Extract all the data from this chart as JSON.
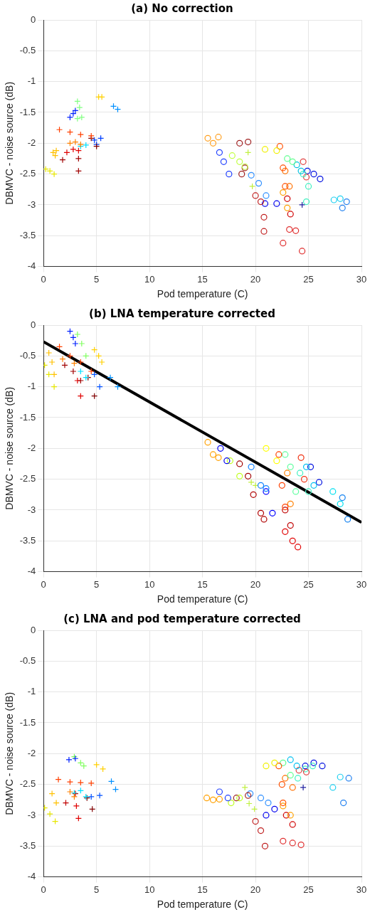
{
  "chart_data": [
    {
      "type": "scatter",
      "title": "(a) No correction",
      "xlabel": "Pod temperature (C)",
      "ylabel": "DBMVC - noise source (dB)",
      "xlim": [
        0,
        30
      ],
      "xticks": [
        0,
        5,
        10,
        15,
        20,
        25,
        30
      ],
      "ylim": [
        -4,
        0
      ],
      "yticks": [
        -4,
        -3.5,
        -3,
        -2.5,
        -2,
        -1.5,
        -1,
        -0.5,
        0
      ],
      "grid": true,
      "legend": false,
      "series": [
        {
          "color": "#e6e600",
          "marker": "cross",
          "x": [
            0.2,
            0.6,
            1.0
          ],
          "values": [
            -2.42,
            -2.45,
            -2.5
          ]
        },
        {
          "color": "#ffc000",
          "marker": "cross",
          "x": [
            0.9,
            1.1,
            1.2
          ],
          "values": [
            -2.15,
            -2.2,
            -2.12
          ]
        },
        {
          "color": "#ff4000",
          "marker": "cross",
          "x": [
            1.5,
            2.5,
            3.5,
            4.5
          ],
          "values": [
            -1.78,
            -1.82,
            -1.86,
            -1.88
          ]
        },
        {
          "color": "#ff8000",
          "marker": "cross",
          "x": [
            2.5,
            3,
            3.5
          ],
          "values": [
            -2.0,
            -1.98,
            -2.02
          ]
        },
        {
          "color": "#e00000",
          "marker": "cross",
          "x": [
            2.2,
            2.8,
            3.3
          ],
          "values": [
            -2.15,
            -2.1,
            -2.12
          ]
        },
        {
          "color": "#a00000",
          "marker": "cross",
          "x": [
            1.8,
            3.3,
            3.3
          ],
          "values": [
            -2.27,
            -2.25,
            -2.45
          ]
        },
        {
          "color": "#00e0ff",
          "marker": "cross",
          "x": [
            3.5,
            4
          ],
          "values": [
            -2.05,
            -2.03
          ]
        },
        {
          "color": "#800000",
          "marker": "cross",
          "x": [
            4.5,
            5
          ],
          "values": [
            -1.92,
            -2.05
          ]
        },
        {
          "color": "#0040ff",
          "marker": "cross",
          "x": [
            4.8,
            5.4,
            5
          ],
          "values": [
            -1.95,
            -1.92,
            -2.02
          ]
        },
        {
          "color": "#0020ff",
          "marker": "cross",
          "x": [
            2.5,
            2.8,
            3
          ],
          "values": [
            -1.58,
            -1.52,
            -1.47
          ]
        },
        {
          "color": "#80ff80",
          "marker": "cross",
          "x": [
            3.2,
            3.4,
            3.6,
            3.2
          ],
          "values": [
            -1.32,
            -1.42,
            -1.58,
            -1.6
          ]
        },
        {
          "color": "#ffd000",
          "marker": "cross",
          "x": [
            5.2,
            5.5
          ],
          "values": [
            -1.25,
            -1.25
          ]
        },
        {
          "color": "#0090ff",
          "marker": "cross",
          "x": [
            6.6,
            7
          ],
          "values": [
            -1.4,
            -1.45
          ]
        },
        {
          "color": "#ffa020",
          "marker": "circle",
          "x": [
            15.5,
            16,
            16.5
          ],
          "values": [
            -1.92,
            -2.0,
            -1.9
          ]
        },
        {
          "color": "#2040ff",
          "marker": "circle",
          "x": [
            16.6,
            17,
            17.5
          ],
          "values": [
            -2.15,
            -2.3,
            -2.5
          ]
        },
        {
          "color": "#c0ff40",
          "marker": "circle",
          "x": [
            17.8,
            18.5,
            19
          ],
          "values": [
            -2.2,
            -2.3,
            -2.38
          ]
        },
        {
          "color": "#a02020",
          "marker": "circle",
          "x": [
            18.5,
            19.3,
            19,
            18.7
          ],
          "values": [
            -2.0,
            -1.98,
            -2.4,
            -2.5
          ]
        },
        {
          "color": "#3090ff",
          "marker": "circle",
          "x": [
            19.6,
            20.3,
            21
          ],
          "values": [
            -2.52,
            -2.65,
            -2.85
          ]
        },
        {
          "color": "#c02020",
          "marker": "circle",
          "x": [
            20,
            20.5,
            20.8,
            20.8
          ],
          "values": [
            -2.85,
            -2.95,
            -3.2,
            -3.43
          ]
        },
        {
          "color": "#0000ee",
          "marker": "circle",
          "x": [
            20.9,
            22
          ],
          "values": [
            -2.98,
            -2.98
          ]
        },
        {
          "color": "#f0f000",
          "marker": "circle",
          "x": [
            20.9,
            22
          ],
          "values": [
            -2.1,
            -2.12
          ]
        },
        {
          "color": "#ff5000",
          "marker": "circle",
          "x": [
            22.3,
            22.6,
            22.8
          ],
          "values": [
            -2.05,
            -2.4,
            -2.7
          ]
        },
        {
          "color": "#60ff90",
          "marker": "circle",
          "x": [
            23,
            23.5
          ],
          "values": [
            -2.25,
            -2.3
          ]
        },
        {
          "color": "#ff7000",
          "marker": "circle",
          "x": [
            22.8,
            23.2
          ],
          "values": [
            -2.45,
            -2.7
          ]
        },
        {
          "color": "#ffa000",
          "marker": "circle",
          "x": [
            22.6,
            23
          ],
          "values": [
            -2.8,
            -3.05
          ]
        },
        {
          "color": "#d00000",
          "marker": "circle",
          "x": [
            23,
            23.3
          ],
          "values": [
            -2.9,
            -3.15
          ]
        },
        {
          "color": "#e03030",
          "marker": "circle",
          "x": [
            22.6,
            23.2,
            23.8,
            24.4
          ],
          "values": [
            -3.62,
            -3.4,
            -3.42,
            -3.75
          ]
        },
        {
          "color": "#00c0e0",
          "marker": "circle",
          "x": [
            23.9,
            24.3
          ],
          "values": [
            -2.35,
            -2.45
          ]
        },
        {
          "color": "#40f0c0",
          "marker": "circle",
          "x": [
            24.5,
            25,
            24.8
          ],
          "values": [
            -2.5,
            -2.7,
            -2.95
          ]
        },
        {
          "color": "#e04040",
          "marker": "circle",
          "x": [
            24.5,
            24.8
          ],
          "values": [
            -2.3,
            -2.55
          ]
        },
        {
          "color": "#0010e0",
          "marker": "circle",
          "x": [
            24.9,
            25.5,
            26.1
          ],
          "values": [
            -2.45,
            -2.5,
            -2.58
          ]
        },
        {
          "color": "#20d0f0",
          "marker": "circle",
          "x": [
            27.4,
            28
          ],
          "values": [
            -2.92,
            -2.9
          ]
        },
        {
          "color": "#2080f0",
          "marker": "circle",
          "x": [
            28.2,
            28.6
          ],
          "values": [
            -3.05,
            -2.95
          ]
        },
        {
          "color": "#2020a0",
          "marker": "cross",
          "x": [
            24.4
          ],
          "values": [
            -3.0
          ]
        },
        {
          "color": "#c0f040",
          "marker": "cross",
          "x": [
            19.3,
            19.7
          ],
          "values": [
            -2.15,
            -2.7
          ]
        }
      ]
    },
    {
      "type": "scatter",
      "title": "(b) LNA temperature corrected",
      "xlabel": "Pod temperature (C)",
      "ylabel": "DBMVC - noise source (dB)",
      "xlim": [
        0,
        30
      ],
      "xticks": [
        0,
        5,
        10,
        15,
        20,
        25,
        30
      ],
      "ylim": [
        -4,
        0
      ],
      "yticks": [
        -4,
        -3.5,
        -3,
        -2.5,
        -2,
        -1.5,
        -1,
        -0.5,
        0
      ],
      "grid": true,
      "legend": false,
      "series": [
        {
          "color": "#e6e600",
          "marker": "cross",
          "x": [
            0.1,
            0.5,
            1.0
          ],
          "values": [
            -0.65,
            -0.8,
            -1.0
          ]
        },
        {
          "color": "#ffc000",
          "marker": "cross",
          "x": [
            0.5,
            0.8,
            1.0
          ],
          "values": [
            -0.45,
            -0.6,
            -0.8
          ]
        },
        {
          "color": "#ff4000",
          "marker": "cross",
          "x": [
            1.5,
            2.5,
            3.5,
            4.5
          ],
          "values": [
            -0.35,
            -0.5,
            -0.6,
            -0.75
          ]
        },
        {
          "color": "#0020ff",
          "marker": "cross",
          "x": [
            2.5,
            2.8,
            3
          ],
          "values": [
            -0.1,
            -0.2,
            -0.3
          ]
        },
        {
          "color": "#80ff60",
          "marker": "cross",
          "x": [
            3.2,
            3.6,
            4
          ],
          "values": [
            -0.15,
            -0.3,
            -0.5
          ]
        },
        {
          "color": "#ffd000",
          "marker": "cross",
          "x": [
            4.8,
            5.2,
            5.5
          ],
          "values": [
            -0.4,
            -0.5,
            -0.6
          ]
        },
        {
          "color": "#ff8000",
          "marker": "cross",
          "x": [
            1.8,
            2.9
          ],
          "values": [
            -0.55,
            -0.62
          ]
        },
        {
          "color": "#a00000",
          "marker": "cross",
          "x": [
            2,
            2.8,
            3.5
          ],
          "values": [
            -0.65,
            -0.75,
            -0.9
          ]
        },
        {
          "color": "#e00000",
          "marker": "cross",
          "x": [
            3.2,
            3.5
          ],
          "values": [
            -0.9,
            -1.15
          ]
        },
        {
          "color": "#00e0ff",
          "marker": "cross",
          "x": [
            3.5,
            4
          ],
          "values": [
            -0.75,
            -0.85
          ]
        },
        {
          "color": "#800000",
          "marker": "cross",
          "x": [
            4.2,
            4.8
          ],
          "values": [
            -0.85,
            -1.15
          ]
        },
        {
          "color": "#0050ff",
          "marker": "cross",
          "x": [
            4.8,
            5.3
          ],
          "values": [
            -0.8,
            -1.0
          ]
        },
        {
          "color": "#0090ff",
          "marker": "cross",
          "x": [
            6.3,
            7
          ],
          "values": [
            -0.85,
            -1.0
          ]
        },
        {
          "color": "#ffa000",
          "marker": "circle",
          "x": [
            15.5,
            16,
            16.5
          ],
          "values": [
            -1.9,
            -2.1,
            -2.15
          ]
        },
        {
          "color": "#0000ee",
          "marker": "circle",
          "x": [
            16.7,
            17.3
          ],
          "values": [
            -2.0,
            -2.2
          ]
        },
        {
          "color": "#c0ff20",
          "marker": "circle",
          "x": [
            17.6,
            18.5
          ],
          "values": [
            -2.2,
            -2.45
          ]
        },
        {
          "color": "#a00000",
          "marker": "circle",
          "x": [
            18.5,
            19.3
          ],
          "values": [
            -2.25,
            -2.45
          ]
        },
        {
          "color": "#1080ff",
          "marker": "circle",
          "x": [
            19.6,
            20.5,
            21
          ],
          "values": [
            -2.3,
            -2.6,
            -2.65
          ]
        },
        {
          "color": "#c0f040",
          "marker": "cross",
          "x": [
            19.6,
            20
          ],
          "values": [
            -2.55,
            -2.6
          ]
        },
        {
          "color": "#b00000",
          "marker": "circle",
          "x": [
            19.8,
            20.5,
            20.8
          ],
          "values": [
            -2.75,
            -3.05,
            -3.15
          ]
        },
        {
          "color": "#0000ff",
          "marker": "circle",
          "x": [
            21,
            21.6
          ],
          "values": [
            -2.7,
            -3.05
          ]
        },
        {
          "color": "#ffff00",
          "marker": "circle",
          "x": [
            21,
            22
          ],
          "values": [
            -2.0,
            -2.2
          ]
        },
        {
          "color": "#ff4000",
          "marker": "circle",
          "x": [
            22.2,
            22.5,
            22.8
          ],
          "values": [
            -2.1,
            -2.6,
            -2.95
          ]
        },
        {
          "color": "#60ffa0",
          "marker": "circle",
          "x": [
            22.8,
            23.3,
            23.8
          ],
          "values": [
            -2.1,
            -2.3,
            -2.7
          ]
        },
        {
          "color": "#ff8000",
          "marker": "circle",
          "x": [
            23,
            23.3
          ],
          "values": [
            -2.4,
            -2.9
          ]
        },
        {
          "color": "#c00000",
          "marker": "circle",
          "x": [
            22.8,
            23.3
          ],
          "values": [
            -3.0,
            -3.25
          ]
        },
        {
          "color": "#e00000",
          "marker": "circle",
          "x": [
            22.8,
            23.5,
            24
          ],
          "values": [
            -3.35,
            -3.5,
            -3.6
          ]
        },
        {
          "color": "#f03010",
          "marker": "circle",
          "x": [
            24.3,
            24.6
          ],
          "values": [
            -2.15,
            -2.5
          ]
        },
        {
          "color": "#40f0c0",
          "marker": "circle",
          "x": [
            24.2,
            25
          ],
          "values": [
            -2.4,
            -2.7
          ]
        },
        {
          "color": "#00c0f0",
          "marker": "circle",
          "x": [
            24.8,
            25.5
          ],
          "values": [
            -2.3,
            -2.6
          ]
        },
        {
          "color": "#0010e0",
          "marker": "circle",
          "x": [
            25.2,
            26
          ],
          "values": [
            -2.3,
            -2.55
          ]
        },
        {
          "color": "#00e0f0",
          "marker": "circle",
          "x": [
            27.3,
            28
          ],
          "values": [
            -2.7,
            -2.9
          ]
        },
        {
          "color": "#1080f0",
          "marker": "circle",
          "x": [
            28.2,
            28.7
          ],
          "values": [
            -2.8,
            -3.15
          ]
        },
        {
          "type": "line",
          "color": "#000000",
          "marker": "none",
          "x": [
            0,
            30
          ],
          "values": [
            -0.27,
            -3.2
          ]
        }
      ]
    },
    {
      "type": "scatter",
      "title": "(c) LNA and pod temperature corrected",
      "xlabel": "Pod temperature (C)",
      "ylabel": "DBMVC - noise source (dB)",
      "xlim": [
        0,
        30
      ],
      "xticks": [
        0,
        5,
        10,
        15,
        20,
        25,
        30
      ],
      "ylim": [
        -4,
        0
      ],
      "yticks": [
        -4,
        -3.5,
        -3,
        -2.5,
        -2,
        -1.5,
        -1,
        -0.5,
        0
      ],
      "grid": true,
      "legend": false,
      "series": [
        {
          "color": "#e6e600",
          "marker": "cross",
          "x": [
            0.1,
            0.6,
            1.1
          ],
          "values": [
            -2.88,
            -2.98,
            -3.1
          ]
        },
        {
          "color": "#ffc000",
          "marker": "cross",
          "x": [
            0.8,
            1.2
          ],
          "values": [
            -2.65,
            -2.8
          ]
        },
        {
          "color": "#ff4000",
          "marker": "cross",
          "x": [
            1.4,
            2.5,
            3.5,
            4.5
          ],
          "values": [
            -2.42,
            -2.46,
            -2.47,
            -2.48
          ]
        },
        {
          "color": "#0020ff",
          "marker": "cross",
          "x": [
            2.4,
            3
          ],
          "values": [
            -2.1,
            -2.08
          ]
        },
        {
          "color": "#80ff60",
          "marker": "cross",
          "x": [
            2.9,
            3.5,
            3.8
          ],
          "values": [
            -2.05,
            -2.15,
            -2.2
          ]
        },
        {
          "color": "#ffd000",
          "marker": "cross",
          "x": [
            5,
            5.6
          ],
          "values": [
            -2.18,
            -2.25
          ]
        },
        {
          "color": "#ff8000",
          "marker": "cross",
          "x": [
            2.5,
            2.9
          ],
          "values": [
            -2.62,
            -2.7
          ]
        },
        {
          "color": "#00e0ff",
          "marker": "cross",
          "x": [
            2.9,
            3.5,
            4.0
          ],
          "values": [
            -2.64,
            -2.6,
            -2.7
          ]
        },
        {
          "color": "#c00000",
          "marker": "cross",
          "x": [
            2.1,
            3.0
          ],
          "values": [
            -2.8,
            -2.65
          ]
        },
        {
          "color": "#e00000",
          "marker": "cross",
          "x": [
            3.1,
            3.3
          ],
          "values": [
            -2.85,
            -3.05
          ]
        },
        {
          "color": "#800000",
          "marker": "cross",
          "x": [
            4.1,
            4.6
          ],
          "values": [
            -2.72,
            -2.9
          ]
        },
        {
          "color": "#0050ff",
          "marker": "cross",
          "x": [
            4.5,
            5.3
          ],
          "values": [
            -2.7,
            -2.68
          ]
        },
        {
          "color": "#0090ff",
          "marker": "cross",
          "x": [
            6.4,
            6.8
          ],
          "values": [
            -2.45,
            -2.58
          ]
        },
        {
          "color": "#ffa000",
          "marker": "circle",
          "x": [
            15.4,
            16,
            16.6
          ],
          "values": [
            -2.72,
            -2.75,
            -2.74
          ]
        },
        {
          "color": "#2040ff",
          "marker": "circle",
          "x": [
            16.6,
            17.4
          ],
          "values": [
            -2.62,
            -2.72
          ]
        },
        {
          "color": "#c0ff20",
          "marker": "circle",
          "x": [
            17.7,
            18.5
          ],
          "values": [
            -2.8,
            -2.72
          ]
        },
        {
          "color": "#a02020",
          "marker": "circle",
          "x": [
            18.2,
            19.3
          ],
          "values": [
            -2.72,
            -2.68
          ]
        },
        {
          "color": "#3090ff",
          "marker": "circle",
          "x": [
            19.5,
            20.5,
            21.2
          ],
          "values": [
            -2.65,
            -2.72,
            -2.8
          ]
        },
        {
          "color": "#c0f040",
          "marker": "cross",
          "x": [
            19,
            19.4,
            19.9
          ],
          "values": [
            -2.55,
            -2.81,
            -2.9
          ]
        },
        {
          "color": "#c02020",
          "marker": "circle",
          "x": [
            20,
            20.5,
            20.9
          ],
          "values": [
            -3.1,
            -3.25,
            -3.5
          ]
        },
        {
          "color": "#0000ee",
          "marker": "circle",
          "x": [
            21,
            21.8
          ],
          "values": [
            -3.0,
            -2.9
          ]
        },
        {
          "color": "#f0f000",
          "marker": "circle",
          "x": [
            21,
            21.8
          ],
          "values": [
            -2.2,
            -2.15
          ]
        },
        {
          "color": "#ff5000",
          "marker": "circle",
          "x": [
            22.2,
            22.5,
            22.6
          ],
          "values": [
            -2.2,
            -2.5,
            -2.8
          ]
        },
        {
          "color": "#60ff90",
          "marker": "circle",
          "x": [
            22.6,
            23.3
          ],
          "values": [
            -2.15,
            -2.35
          ]
        },
        {
          "color": "#ff7000",
          "marker": "circle",
          "x": [
            22.8,
            23.5
          ],
          "values": [
            -2.4,
            -2.55
          ]
        },
        {
          "color": "#ffa000",
          "marker": "circle",
          "x": [
            22.6,
            23.3
          ],
          "values": [
            -2.85,
            -3.0
          ]
        },
        {
          "color": "#d00000",
          "marker": "circle",
          "x": [
            22.9,
            23.5
          ],
          "values": [
            -3.0,
            -3.15
          ]
        },
        {
          "color": "#e03030",
          "marker": "circle",
          "x": [
            22.6,
            23.5,
            24.3
          ],
          "values": [
            -3.42,
            -3.45,
            -3.48
          ]
        },
        {
          "color": "#00c0f0",
          "marker": "circle",
          "x": [
            23.3,
            23.9
          ],
          "values": [
            -2.1,
            -2.2
          ]
        },
        {
          "color": "#e04040",
          "marker": "circle",
          "x": [
            24.1,
            24.8
          ],
          "values": [
            -2.27,
            -2.3
          ]
        },
        {
          "color": "#40f0c0",
          "marker": "circle",
          "x": [
            24,
            24.7,
            25.4
          ],
          "values": [
            -2.4,
            -2.25,
            -2.2
          ]
        },
        {
          "color": "#0010e0",
          "marker": "circle",
          "x": [
            24.7,
            25.5,
            26.3
          ],
          "values": [
            -2.2,
            -2.15,
            -2.2
          ]
        },
        {
          "color": "#20d0f0",
          "marker": "circle",
          "x": [
            27.3,
            28
          ],
          "values": [
            -2.55,
            -2.38
          ]
        },
        {
          "color": "#2080f0",
          "marker": "circle",
          "x": [
            28.3,
            28.8
          ],
          "values": [
            -2.8,
            -2.4
          ]
        },
        {
          "color": "#2020a0",
          "marker": "cross",
          "x": [
            24.5
          ],
          "values": [
            -2.55
          ]
        }
      ]
    }
  ]
}
